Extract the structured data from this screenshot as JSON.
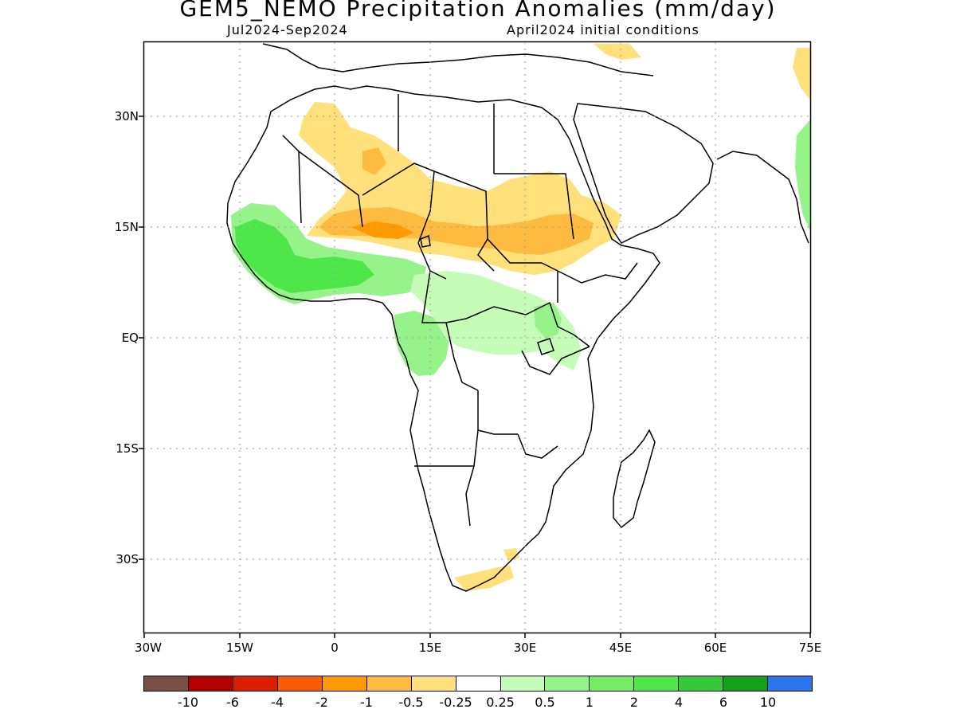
{
  "title": "GEM5_NEMO Precipitation Anomalies (mm/day)",
  "subtitle_left": "Jul2024-Sep2024",
  "subtitle_right": "April2024 initial conditions",
  "lat_ticks": [
    "30N",
    "15N",
    "EQ",
    "15S",
    "30S"
  ],
  "lon_ticks": [
    "30W",
    "15W",
    "0",
    "15E",
    "30E",
    "45E",
    "60E",
    "75E"
  ],
  "colorbar": {
    "colors": [
      "#7a5045",
      "#b50000",
      "#dc1e00",
      "#fa5a00",
      "#ff9b00",
      "#ffbb3f",
      "#ffe07a",
      "#ffffff",
      "#c5fcb8",
      "#96f38a",
      "#75ec64",
      "#4fe64a",
      "#37c93c",
      "#14a01c",
      "#2a74ee"
    ],
    "labels": [
      "-10",
      "-6",
      "-4",
      "-2",
      "-1",
      "-0.5",
      "-0.25",
      "0.25",
      "0.5",
      "1",
      "2",
      "4",
      "6",
      "10"
    ]
  },
  "colors": {
    "dry_light": "#ffe07a",
    "dry_mid": "#ffbb3f",
    "dry_strong": "#ff9b00",
    "wet_light": "#c5fcb8",
    "wet_mid": "#96f38a",
    "wet_strong": "#4fe64a"
  }
}
